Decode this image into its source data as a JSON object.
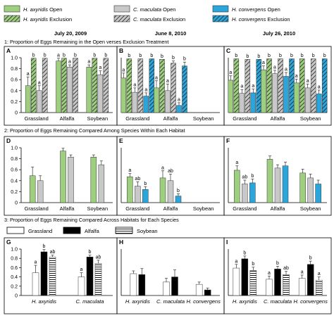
{
  "legend": [
    {
      "label_species": "H. axyridis",
      "label_suffix": " Open",
      "fill": "#9ecf7f",
      "pattern": "solid"
    },
    {
      "label_species": "C. maculata",
      "label_suffix": " Open",
      "fill": "#c8c8c8",
      "pattern": "solid"
    },
    {
      "label_species": "H. convergens",
      "label_suffix": " Open",
      "fill": "#2aa6dc",
      "pattern": "solid"
    },
    {
      "label_species": "H. axyridis",
      "label_suffix": " Exclusion",
      "fill": "#9ecf7f",
      "pattern": "hatch"
    },
    {
      "label_species": "C. maculata",
      "label_suffix": " Exclusion",
      "fill": "#c8c8c8",
      "pattern": "hatch"
    },
    {
      "label_species": "H. convergens",
      "label_suffix": " Exclusion",
      "fill": "#2aa6dc",
      "pattern": "hatch"
    }
  ],
  "legend3": [
    {
      "label": "Grassland",
      "pattern": "white"
    },
    {
      "label": "Alfalfa",
      "pattern": "black"
    },
    {
      "label": "Soybean",
      "pattern": "hlines"
    }
  ],
  "dates": [
    "July 20, 2009",
    "June 8, 2010",
    "July 26, 2010"
  ],
  "section_titles": [
    "1: Proportion of Eggs Remaining in the Open verses Exclusion Treatment",
    "2: Proportion of Eggs Remaining Compared Among Species Within Each Habitat",
    "3: Proportion of Eggs Remaining Compared Across Habitats for Each Species"
  ],
  "colors": {
    "h_axyridis": "#9ecf7f",
    "c_maculata": "#c8c8c8",
    "h_convergens": "#2aa6dc",
    "alfalfa": "#000000",
    "grassland": "#ffffff"
  },
  "chart_data": [
    {
      "panel": "A",
      "type": "bar",
      "ylim": [
        0,
        1.0
      ],
      "yticks": [
        "0",
        "0.2",
        "0.4",
        "0.6",
        "0.8",
        "1.0"
      ],
      "categories": [
        "Grassland",
        "Alfalfa",
        "Soybean"
      ],
      "series": [
        {
          "name": "H. axyridis Open",
          "color": "#9ecf7f",
          "pattern": "solid",
          "values": [
            0.49,
            0.94,
            0.83
          ],
          "errors": [
            0.16,
            0.05,
            0.04
          ],
          "letters": [
            "a",
            "a",
            "a"
          ]
        },
        {
          "name": "H. axyridis Exclusion",
          "color": "#9ecf7f",
          "pattern": "hatch",
          "values": [
            0.99,
            0.99,
            0.99
          ],
          "errors": [
            0,
            0,
            0
          ],
          "letters": [
            "b",
            "b",
            "b"
          ]
        },
        {
          "name": "C. maculata Open",
          "color": "#c8c8c8",
          "pattern": "solid",
          "values": [
            0.4,
            0.83,
            0.69
          ],
          "errors": [
            0.09,
            0.04,
            0.07
          ],
          "letters": [
            "a",
            "a",
            "a"
          ]
        },
        {
          "name": "C. maculata Exclusion",
          "color": "#c8c8c8",
          "pattern": "hatch",
          "values": [
            0.99,
            0.99,
            0.99
          ],
          "errors": [
            0,
            0,
            0
          ],
          "letters": [
            "b",
            "b",
            "b"
          ]
        }
      ]
    },
    {
      "panel": "B",
      "type": "bar",
      "ylim": [
        0,
        1.0
      ],
      "yticks": [],
      "categories": [
        "Grassland",
        "Alfalfa",
        "Soybean"
      ],
      "series": [
        {
          "name": "H. axyridis Open",
          "color": "#9ecf7f",
          "pattern": "solid",
          "values": [
            0.63,
            0.45,
            null
          ],
          "errors": [
            0.09,
            0.13,
            0
          ],
          "letters": [
            "a",
            "a",
            ""
          ]
        },
        {
          "name": "H. axyridis Exclusion",
          "color": "#9ecf7f",
          "pattern": "hatch",
          "values": [
            0.98,
            0.97,
            null
          ],
          "errors": [
            0,
            0,
            0
          ],
          "letters": [
            "b",
            "b",
            ""
          ]
        },
        {
          "name": "C. maculata Open",
          "color": "#c8c8c8",
          "pattern": "solid",
          "values": [
            0.37,
            0.4,
            null
          ],
          "errors": [
            0.08,
            0.12,
            0
          ],
          "letters": [
            "a",
            "a",
            ""
          ]
        },
        {
          "name": "C. maculata Exclusion",
          "color": "#c8c8c8",
          "pattern": "hatch",
          "values": [
            0.98,
            0.9,
            null
          ],
          "errors": [
            0,
            0.04,
            0
          ],
          "letters": [
            "b",
            "b",
            ""
          ]
        },
        {
          "name": "H. convergens Open",
          "color": "#2aa6dc",
          "pattern": "solid",
          "values": [
            0.3,
            0.13,
            null
          ],
          "errors": [
            0.06,
            0.05,
            0
          ],
          "letters": [
            "a",
            "a",
            ""
          ]
        },
        {
          "name": "H. convergens Exclusion",
          "color": "#2aa6dc",
          "pattern": "hatch",
          "values": [
            0.98,
            0.85,
            null
          ],
          "errors": [
            0,
            0.07,
            0
          ],
          "letters": [
            "b",
            "b",
            ""
          ]
        }
      ]
    },
    {
      "panel": "C",
      "type": "bar",
      "ylim": [
        0,
        1.0
      ],
      "yticks": [],
      "categories": [
        "Grassland",
        "Alfalfa",
        "Soybean"
      ],
      "series": [
        {
          "name": "H. axyridis Open",
          "color": "#9ecf7f",
          "pattern": "solid",
          "values": [
            0.59,
            0.78,
            0.54
          ],
          "errors": [
            0.08,
            0.07,
            0.07
          ],
          "letters": [
            "a",
            "a",
            "a"
          ]
        },
        {
          "name": "H. axyridis Exclusion",
          "color": "#9ecf7f",
          "pattern": "hatch",
          "values": [
            0.98,
            0.98,
            0.98
          ],
          "errors": [
            0,
            0,
            0
          ],
          "letters": [
            "b",
            "b",
            "b"
          ]
        },
        {
          "name": "C. maculata Open",
          "color": "#c8c8c8",
          "pattern": "solid",
          "values": [
            0.35,
            0.71,
            0.45
          ],
          "errors": [
            0.07,
            0.06,
            0.07
          ],
          "letters": [
            "a",
            "a",
            "a"
          ]
        },
        {
          "name": "C. maculata Exclusion",
          "color": "#c8c8c8",
          "pattern": "hatch",
          "values": [
            0.97,
            0.98,
            0.98
          ],
          "errors": [
            0,
            0,
            0
          ],
          "letters": [
            "b",
            "b",
            "b"
          ]
        },
        {
          "name": "H. convergens Open",
          "color": "#2aa6dc",
          "pattern": "solid",
          "values": [
            0.36,
            0.66,
            0.34
          ],
          "errors": [
            0.07,
            0.07,
            0.07
          ],
          "letters": [
            "a",
            "a",
            "a"
          ]
        },
        {
          "name": "H. convergens Exclusion",
          "color": "#2aa6dc",
          "pattern": "hatch",
          "values": [
            0.97,
            0.98,
            0.98
          ],
          "errors": [
            0,
            0,
            0
          ],
          "letters": [
            "b",
            "b",
            "b"
          ]
        }
      ]
    },
    {
      "panel": "D",
      "type": "bar",
      "ylim": [
        0,
        1.0
      ],
      "yticks": [
        "0",
        "0.2",
        "0.4",
        "0.6",
        "0.8",
        "1.0"
      ],
      "categories": [
        "Grassland",
        "Alfalfa",
        "Soybean"
      ],
      "series": [
        {
          "name": "H. axyridis",
          "color": "#9ecf7f",
          "pattern": "solid",
          "values": [
            0.49,
            0.94,
            0.83
          ],
          "errors": [
            0.16,
            0.05,
            0.04
          ],
          "letters": [
            "",
            "",
            ""
          ]
        },
        {
          "name": "C. maculata",
          "color": "#c8c8c8",
          "pattern": "solid",
          "values": [
            0.4,
            0.83,
            0.69
          ],
          "errors": [
            0.09,
            0.04,
            0.07
          ],
          "letters": [
            "",
            "",
            ""
          ]
        }
      ]
    },
    {
      "panel": "E",
      "type": "bar",
      "ylim": [
        0,
        1.0
      ],
      "yticks": [],
      "categories": [
        "Grassland",
        "Alfalfa",
        "Soybean"
      ],
      "series": [
        {
          "name": "H. axyridis",
          "color": "#9ecf7f",
          "pattern": "solid",
          "values": [
            0.47,
            0.45,
            null
          ],
          "errors": [
            0.06,
            0.13,
            0
          ],
          "letters": [
            "a",
            "a",
            ""
          ]
        },
        {
          "name": "C. maculata",
          "color": "#c8c8c8",
          "pattern": "solid",
          "values": [
            0.3,
            0.4,
            null
          ],
          "errors": [
            0.08,
            0.12,
            0
          ],
          "letters": [
            "ab",
            "ab",
            ""
          ]
        },
        {
          "name": "H. convergens",
          "color": "#2aa6dc",
          "pattern": "solid",
          "values": [
            0.24,
            0.12,
            null
          ],
          "errors": [
            0.05,
            0.04,
            0
          ],
          "letters": [
            "b",
            "b",
            ""
          ]
        }
      ]
    },
    {
      "panel": "F",
      "type": "bar",
      "ylim": [
        0,
        1.0
      ],
      "yticks": [],
      "categories": [
        "Grassland",
        "Alfalfa",
        "Soybean"
      ],
      "series": [
        {
          "name": "H. axyridis",
          "color": "#9ecf7f",
          "pattern": "solid",
          "values": [
            0.59,
            0.79,
            0.54
          ],
          "errors": [
            0.08,
            0.06,
            0.07
          ],
          "letters": [
            "a",
            "",
            ""
          ]
        },
        {
          "name": "C. maculata",
          "color": "#c8c8c8",
          "pattern": "solid",
          "values": [
            0.34,
            0.63,
            0.45
          ],
          "errors": [
            0.07,
            0.06,
            0.07
          ],
          "letters": [
            "ab",
            "",
            ""
          ]
        },
        {
          "name": "H. convergens",
          "color": "#2aa6dc",
          "pattern": "solid",
          "values": [
            0.36,
            0.67,
            0.34
          ],
          "errors": [
            0.07,
            0.07,
            0.07
          ],
          "letters": [
            "b",
            "",
            ""
          ]
        }
      ]
    },
    {
      "panel": "G",
      "type": "bar",
      "ylim": [
        0,
        1.0
      ],
      "yticks": [
        "0",
        "0.2",
        "0.4",
        "0.6",
        "0.8",
        "1.0"
      ],
      "categories": [
        "H. axyridis",
        "C. maculata"
      ],
      "series": [
        {
          "name": "Grassland",
          "color": "#ffffff",
          "pattern": "white",
          "values": [
            0.49,
            0.4
          ],
          "errors": [
            0.16,
            0.09
          ],
          "letters": [
            "a",
            "a"
          ]
        },
        {
          "name": "Alfalfa",
          "color": "#000000",
          "pattern": "black",
          "values": [
            0.94,
            0.83
          ],
          "errors": [
            0.05,
            0.04
          ],
          "letters": [
            "b",
            "b"
          ]
        },
        {
          "name": "Soybean",
          "color": "#ffffff",
          "pattern": "hlines",
          "values": [
            0.83,
            0.69
          ],
          "errors": [
            0.04,
            0.07
          ],
          "letters": [
            "ab",
            "ab"
          ]
        }
      ]
    },
    {
      "panel": "H",
      "type": "bar",
      "ylim": [
        0,
        1.0
      ],
      "yticks": [],
      "categories": [
        "H. axyridis",
        "C. maculata",
        "H. convergens"
      ],
      "series": [
        {
          "name": "Grassland",
          "color": "#ffffff",
          "pattern": "white",
          "values": [
            0.47,
            0.29,
            0.24
          ],
          "errors": [
            0.06,
            0.08,
            0.05
          ],
          "letters": [
            "",
            "",
            ""
          ]
        },
        {
          "name": "Alfalfa",
          "color": "#000000",
          "pattern": "black",
          "values": [
            0.45,
            0.4,
            0.12
          ],
          "errors": [
            0.13,
            0.15,
            0.04
          ],
          "letters": [
            "",
            "",
            ""
          ]
        }
      ]
    },
    {
      "panel": "I",
      "type": "bar",
      "ylim": [
        0,
        1.0
      ],
      "yticks": [],
      "categories": [
        "H. axyridis",
        "C. maculata",
        "H. convergens"
      ],
      "series": [
        {
          "name": "Grassland",
          "color": "#ffffff",
          "pattern": "white",
          "values": [
            0.59,
            0.35,
            0.37
          ],
          "errors": [
            0.08,
            0.07,
            0.07
          ],
          "letters": [
            "a",
            "a",
            "a"
          ]
        },
        {
          "name": "Alfalfa",
          "color": "#000000",
          "pattern": "black",
          "values": [
            0.79,
            0.57,
            0.67
          ],
          "errors": [
            0.06,
            0.06,
            0.07
          ],
          "letters": [
            "b",
            "b",
            "b"
          ]
        },
        {
          "name": "Soybean",
          "color": "#ffffff",
          "pattern": "hlines",
          "values": [
            0.54,
            0.45,
            0.33
          ],
          "errors": [
            0.07,
            0.07,
            0.07
          ],
          "letters": [
            "b",
            "ab",
            "a"
          ]
        }
      ]
    }
  ]
}
